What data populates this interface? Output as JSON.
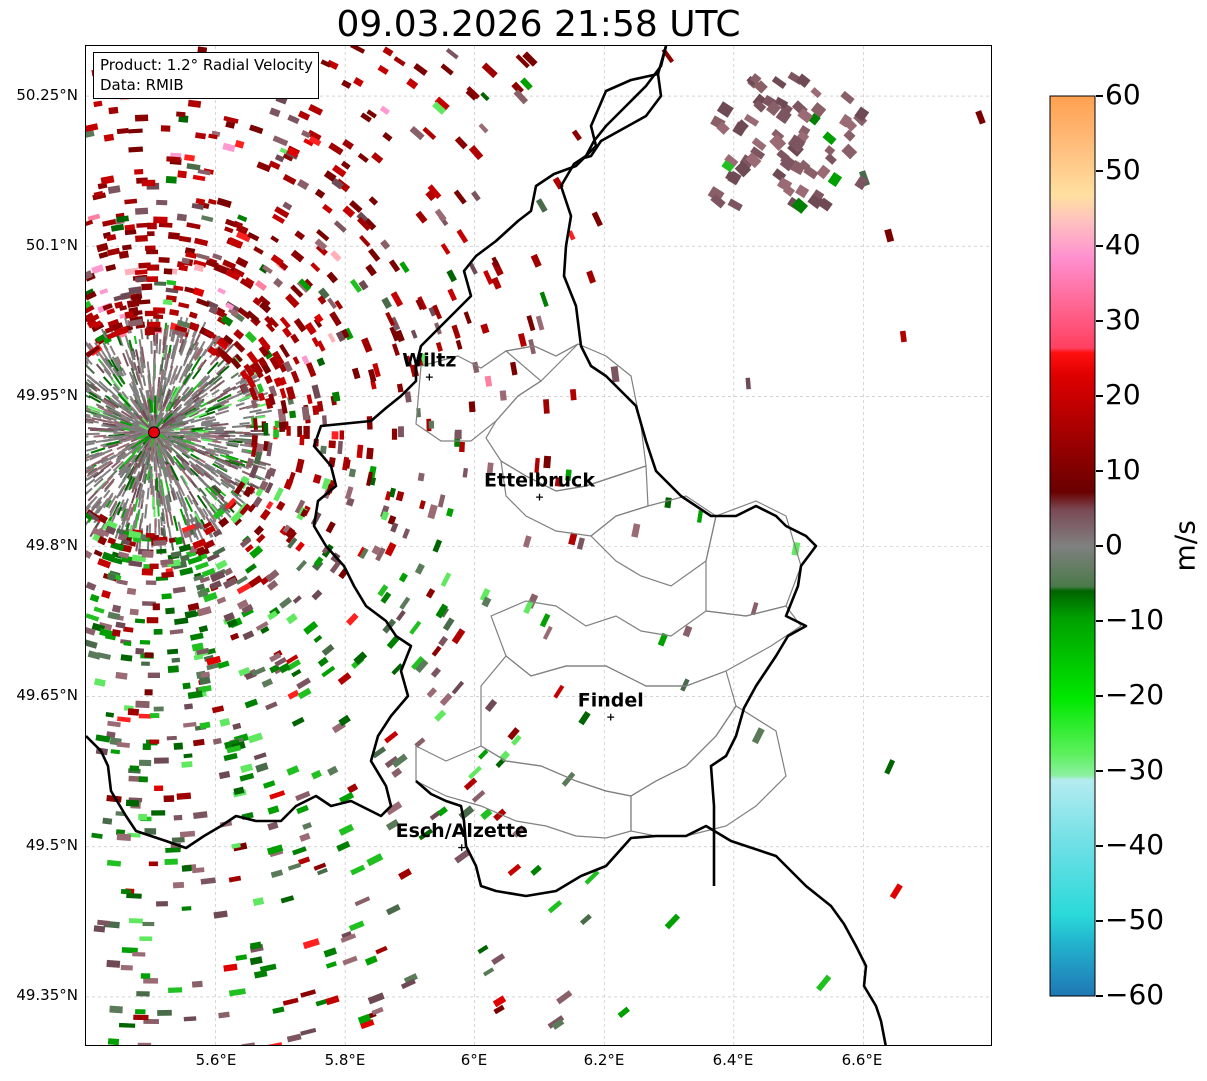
{
  "title": "09.03.2026 21:58 UTC",
  "info": {
    "product": "Product: 1.2° Radial Velocity",
    "source": "Data: RMIB"
  },
  "map": {
    "lat_ticks": [
      "50.25°N",
      "50.1°N",
      "49.95°N",
      "49.8°N",
      "49.65°N",
      "49.5°N",
      "49.35°N"
    ],
    "lon_ticks": [
      "5.6°E",
      "5.8°E",
      "6°E",
      "6.2°E",
      "6.4°E",
      "6.6°E"
    ],
    "extent": {
      "lon": [
        5.4,
        6.8
      ],
      "lat": [
        49.3,
        50.3
      ]
    },
    "radar_site": {
      "lon": 5.505,
      "lat": 49.914,
      "color": "#e8000b"
    },
    "cities": [
      {
        "name": "Wiltz",
        "lon": 5.93,
        "lat": 49.97
      },
      {
        "name": "Ettelbruck",
        "lon": 6.1,
        "lat": 49.85
      },
      {
        "name": "Findel",
        "lon": 6.21,
        "lat": 49.63
      },
      {
        "name": "Esch/Alzette",
        "lon": 5.98,
        "lat": 49.5
      }
    ]
  },
  "colorbar": {
    "unit": "m/s",
    "ticks": [
      "60",
      "50",
      "40",
      "30",
      "20",
      "10",
      "0",
      "−10",
      "−20",
      "−30",
      "−40",
      "−50",
      "−60"
    ],
    "range": [
      -60,
      60
    ],
    "colors": {
      "neg_strong": "#1f77b4",
      "neg_cyan": "#2ad9d9",
      "neg_light": "#b4ecef",
      "neg_green_light": "#5cf05c",
      "neg_green": "#00b400",
      "neg_dark": "#006400",
      "zero_gray": "#808080",
      "pos_dark": "#7a0000",
      "pos_red": "#e00000",
      "pos_pink": "#ff80c0",
      "pos_orange": "#ffa050"
    }
  }
}
